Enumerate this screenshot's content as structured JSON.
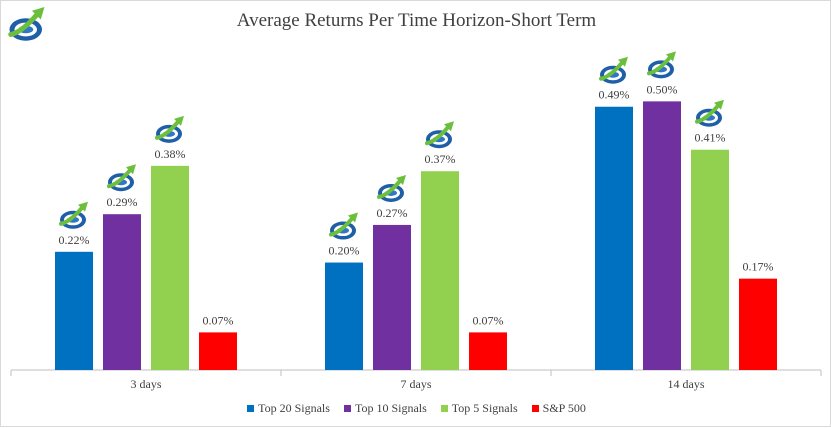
{
  "chart_data": {
    "type": "bar",
    "title": "Average Returns Per Time Horizon-Short Term",
    "xlabel": "",
    "ylabel": "",
    "ylim": [
      0,
      0.55
    ],
    "grid": false,
    "legend_position": "bottom",
    "categories": [
      "3 days",
      "7 days",
      "14 days"
    ],
    "series": [
      {
        "name": "Top 20 Signals",
        "color": "#0070c0",
        "values": [
          0.22,
          0.2,
          0.49
        ],
        "labels": [
          "0.22%",
          "0.20%",
          "0.49%"
        ]
      },
      {
        "name": "Top 10 Signals",
        "color": "#7030a0",
        "values": [
          0.29,
          0.27,
          0.5
        ],
        "labels": [
          "0.29%",
          "0.27%",
          "0.50%"
        ]
      },
      {
        "name": "Top 5 Signals",
        "color": "#92d050",
        "values": [
          0.38,
          0.37,
          0.41
        ],
        "labels": [
          "0.38%",
          "0.37%",
          "0.41%"
        ]
      },
      {
        "name": "S&P 500",
        "color": "#ff0000",
        "values": [
          0.07,
          0.07,
          0.17
        ],
        "labels": [
          "0.07%",
          "0.07%",
          "0.17%"
        ]
      }
    ],
    "bar_icons_on_series": [
      "Top 20 Signals",
      "Top 10 Signals",
      "Top 5 Signals"
    ]
  },
  "icons": {
    "logo": "globe-arrow-logo-icon",
    "bar_marker": "globe-arrow-icon"
  },
  "colors": {
    "globe_blue": "#1f5fa8",
    "arrow_green": "#6cbf3c",
    "axis": "#bfbfbf"
  }
}
